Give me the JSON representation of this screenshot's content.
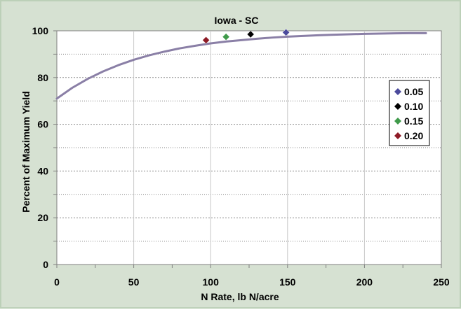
{
  "chart_data": {
    "type": "scatter",
    "title": "Iowa - SC",
    "xlabel": "N Rate, lb N/acre",
    "ylabel": "Percent of Maximum Yield",
    "xlim": [
      0,
      250
    ],
    "ylim": [
      0,
      100
    ],
    "x_ticks": [
      0,
      50,
      100,
      150,
      200,
      250
    ],
    "y_ticks": [
      0,
      20,
      40,
      60,
      80,
      100
    ],
    "grid": true,
    "legend_position": "right",
    "curve": {
      "x": [
        0,
        10,
        20,
        30,
        40,
        50,
        60,
        70,
        80,
        90,
        100,
        110,
        120,
        130,
        140,
        150,
        160,
        170,
        180,
        190,
        200,
        210,
        220,
        230,
        240
      ],
      "y": [
        71.0,
        75.6,
        79.4,
        82.6,
        85.3,
        87.6,
        89.5,
        91.1,
        92.5,
        93.6,
        94.6,
        95.4,
        96.0,
        96.6,
        97.1,
        97.5,
        97.8,
        98.1,
        98.3,
        98.5,
        98.7,
        98.8,
        98.9,
        99.0,
        99.0
      ],
      "color": "#8a7fa6"
    },
    "series": [
      {
        "name": "0.05",
        "x": [
          149
        ],
        "y": [
          99.3
        ],
        "color": "#4b4a9c"
      },
      {
        "name": "0.10",
        "x": [
          126
        ],
        "y": [
          98.5
        ],
        "color": "#000000"
      },
      {
        "name": "0.15",
        "x": [
          110
        ],
        "y": [
          97.4
        ],
        "color": "#3f9a4a"
      },
      {
        "name": "0.20",
        "x": [
          97
        ],
        "y": [
          96.0
        ],
        "color": "#8e1b26"
      }
    ]
  }
}
